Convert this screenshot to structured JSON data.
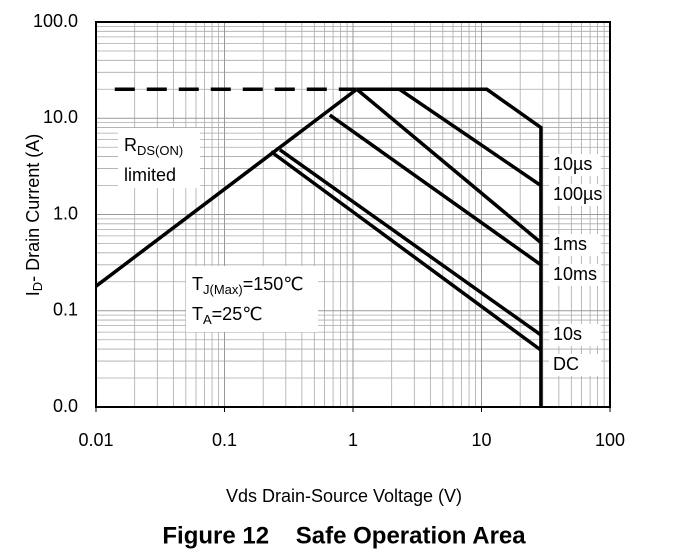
{
  "chart_data": {
    "type": "line",
    "title": "Figure 12    Safe Operation Area",
    "xlabel": "Vds Drain-Source Voltage (V)",
    "ylabel": {
      "main": "I",
      "sub": "D",
      "rest": "- Drain Current (A)"
    },
    "log_x": true,
    "log_y": true,
    "grid": true,
    "minor_grid": true,
    "xlim": [
      0.01,
      100
    ],
    "ylim": [
      0.01,
      100
    ],
    "xticks": [
      0.01,
      0.1,
      1,
      10,
      100
    ],
    "yticks": [
      {
        "value": 0.01,
        "label": "0.0"
      },
      {
        "value": 0.1,
        "label": "0.1"
      },
      {
        "value": 1,
        "label": "1.0"
      },
      {
        "value": 10,
        "label": "10.0"
      },
      {
        "value": 100,
        "label": "100.0"
      }
    ],
    "series": [
      {
        "color": "#000000",
        "dashed": true,
        "x": [
          0.014,
          1.07
        ],
        "values": [
          20,
          20
        ]
      },
      {
        "color": "#000000",
        "x": [
          0.01,
          1.07
        ],
        "values": [
          0.18,
          20
        ]
      },
      {
        "name": "10µs",
        "color": "#000000",
        "x": [
          1.07,
          11,
          29,
          29
        ],
        "values": [
          20,
          20,
          8,
          0.01
        ]
      },
      {
        "name": "100µs",
        "color": "#000000",
        "x": [
          2.3,
          29
        ],
        "values": [
          20,
          2.0
        ]
      },
      {
        "name": "1ms",
        "color": "#000000",
        "x": [
          1.07,
          29
        ],
        "values": [
          20,
          0.51
        ]
      },
      {
        "name": "10ms",
        "color": "#000000",
        "x": [
          0.66,
          29
        ],
        "values": [
          10.8,
          0.3
        ]
      },
      {
        "name": "10s",
        "color": "#000000",
        "x": [
          0.27,
          29
        ],
        "values": [
          4.7,
          0.056
        ]
      },
      {
        "name": "DC",
        "color": "#000000",
        "x": [
          0.23,
          29
        ],
        "values": [
          4.5,
          0.039
        ]
      }
    ],
    "annotations": [
      {
        "text": "R",
        "sub": "DS(ON)",
        "line2": "limited"
      },
      {
        "lines": [
          {
            "text": "T",
            "sub": "J(Max)",
            "rest": "=150℃"
          },
          {
            "text": "T",
            "sub": "A",
            "rest": "=25℃"
          }
        ]
      }
    ]
  }
}
